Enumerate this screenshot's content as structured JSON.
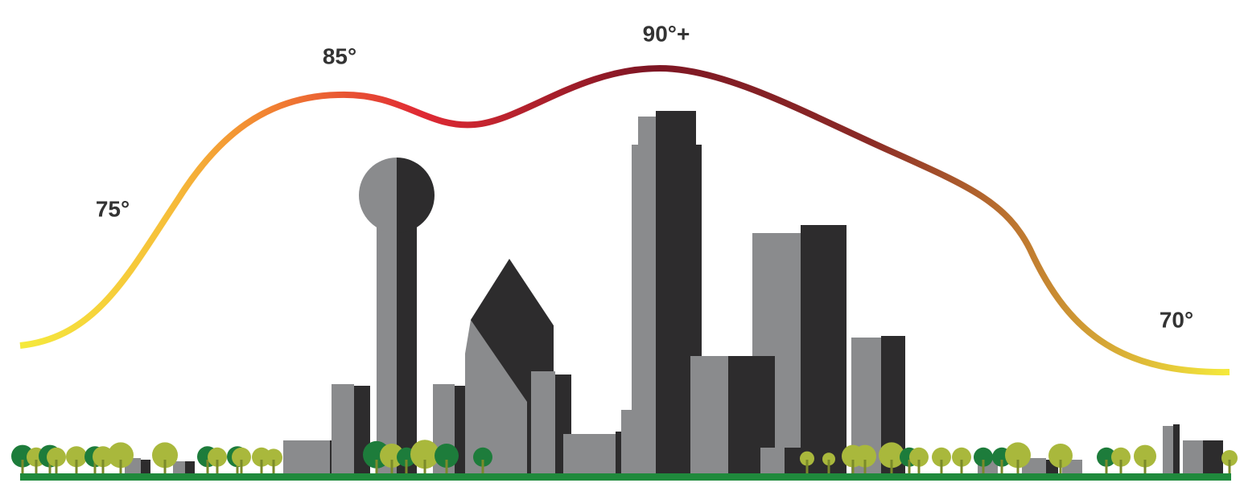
{
  "labels": [
    "75°",
    "85°",
    "90°+",
    "70°"
  ]
}
